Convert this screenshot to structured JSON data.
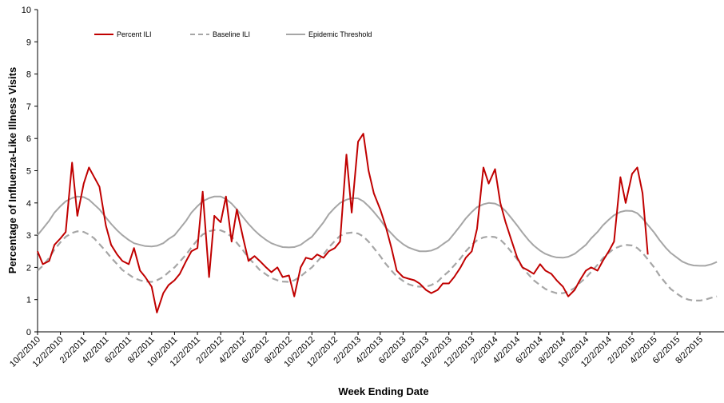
{
  "chart_data": {
    "type": "line",
    "y_label": "Percentage of Influenza-Like Illness Visits",
    "x_label": "Week Ending Date",
    "x": [
      "10/2/2010",
      "10/16/2010",
      "11/2/2010",
      "11/16/2010",
      "12/2/2010",
      "12/16/2010",
      "1/2/2011",
      "1/16/2011",
      "2/2/2011",
      "2/16/2011",
      "3/2/2011",
      "3/16/2011",
      "4/2/2011",
      "4/16/2011",
      "5/2/2011",
      "5/16/2011",
      "6/2/2011",
      "6/16/2011",
      "7/2/2011",
      "7/16/2011",
      "8/2/2011",
      "8/16/2011",
      "9/2/2011",
      "9/16/2011",
      "10/2/2011",
      "10/16/2011",
      "11/2/2011",
      "11/16/2011",
      "12/2/2011",
      "12/16/2011",
      "1/2/2012",
      "1/16/2012",
      "2/2/2012",
      "2/16/2012",
      "3/2/2012",
      "3/16/2012",
      "4/2/2012",
      "4/16/2012",
      "5/2/2012",
      "5/16/2012",
      "6/2/2012",
      "6/16/2012",
      "7/2/2012",
      "7/16/2012",
      "8/2/2012",
      "8/16/2012",
      "9/2/2012",
      "9/16/2012",
      "10/2/2012",
      "10/16/2012",
      "11/2/2012",
      "11/16/2012",
      "12/2/2012",
      "12/16/2012",
      "1/2/2013",
      "1/16/2013",
      "2/2/2013",
      "2/16/2013",
      "3/2/2013",
      "3/16/2013",
      "4/2/2013",
      "4/16/2013",
      "5/2/2013",
      "5/16/2013",
      "6/2/2013",
      "6/16/2013",
      "7/2/2013",
      "7/16/2013",
      "8/2/2013",
      "8/16/2013",
      "9/2/2013",
      "9/16/2013",
      "10/2/2013",
      "10/16/2013",
      "11/2/2013",
      "11/16/2013",
      "12/2/2013",
      "12/16/2013",
      "1/2/2014",
      "1/16/2014",
      "2/2/2014",
      "2/16/2014",
      "3/2/2014",
      "3/16/2014",
      "4/2/2014",
      "4/16/2014",
      "5/2/2014",
      "5/16/2014",
      "6/2/2014",
      "6/16/2014",
      "7/2/2014",
      "7/16/2014",
      "8/2/2014",
      "8/16/2014",
      "9/2/2014",
      "9/16/2014",
      "10/2/2014",
      "10/16/2014",
      "11/2/2014",
      "11/16/2014",
      "12/2/2014",
      "12/16/2014",
      "1/2/2015",
      "1/16/2015",
      "2/2/2015",
      "2/16/2015",
      "3/2/2015",
      "3/16/2015",
      "4/2/2015",
      "4/16/2015",
      "5/2/2015",
      "5/16/2015",
      "6/2/2015",
      "6/16/2015",
      "7/2/2015",
      "7/16/2015",
      "8/2/2015",
      "8/16/2015",
      "9/2/2015",
      "9/16/2015"
    ],
    "series": [
      {
        "name": "Percent ILI",
        "color": "#c00000",
        "dash": false,
        "values": [
          2.5,
          2.1,
          2.2,
          2.7,
          2.9,
          3.1,
          5.25,
          3.6,
          4.6,
          5.1,
          4.8,
          4.5,
          3.3,
          2.7,
          2.4,
          2.2,
          2.1,
          2.6,
          1.9,
          1.7,
          1.4,
          0.6,
          1.2,
          1.45,
          1.6,
          1.8,
          2.2,
          2.5,
          2.6,
          4.35,
          1.7,
          3.6,
          3.4,
          4.2,
          2.8,
          3.8,
          2.9,
          2.2,
          2.35,
          2.2,
          2.0,
          1.85,
          2.0,
          1.7,
          1.75,
          1.1,
          2.0,
          2.3,
          2.25,
          2.4,
          2.3,
          2.5,
          2.6,
          2.8,
          5.5,
          3.7,
          5.9,
          6.15,
          5.0,
          4.3,
          3.8,
          3.3,
          2.6,
          1.9,
          1.7,
          1.65,
          1.6,
          1.5,
          1.3,
          1.2,
          1.3,
          1.5,
          1.5,
          1.7,
          2.0,
          2.3,
          2.5,
          3.2,
          5.1,
          4.6,
          5.05,
          4.0,
          3.4,
          2.9,
          2.3,
          2.0,
          1.9,
          1.8,
          2.1,
          1.9,
          1.8,
          1.6,
          1.4,
          1.1,
          1.3,
          1.6,
          1.9,
          2.0,
          1.9,
          2.2,
          2.5,
          2.8,
          4.8,
          4.0,
          4.9,
          5.1,
          4.3,
          2.4,
          null,
          null,
          null,
          null,
          null,
          null,
          null,
          null,
          null,
          null,
          null,
          null
        ]
      },
      {
        "name": "Baseline ILI",
        "color": "#a6a6a6",
        "dash": true,
        "values": [
          1.9,
          2.05,
          2.3,
          2.55,
          2.78,
          2.95,
          3.07,
          3.12,
          3.1,
          3.02,
          2.9,
          2.72,
          2.5,
          2.3,
          2.1,
          1.92,
          1.78,
          1.67,
          1.6,
          1.56,
          1.55,
          1.6,
          1.7,
          1.85,
          2.0,
          2.18,
          2.4,
          2.62,
          2.85,
          3.02,
          3.12,
          3.16,
          3.15,
          3.08,
          2.95,
          2.76,
          2.52,
          2.3,
          2.1,
          1.92,
          1.78,
          1.67,
          1.6,
          1.56,
          1.55,
          1.6,
          1.72,
          1.86,
          2.0,
          2.18,
          2.4,
          2.62,
          2.82,
          2.98,
          3.06,
          3.08,
          3.05,
          2.96,
          2.8,
          2.6,
          2.35,
          2.12,
          1.9,
          1.72,
          1.58,
          1.48,
          1.42,
          1.4,
          1.4,
          1.45,
          1.56,
          1.72,
          1.88,
          2.06,
          2.28,
          2.5,
          2.7,
          2.84,
          2.93,
          2.96,
          2.94,
          2.86,
          2.7,
          2.5,
          2.25,
          2.0,
          1.78,
          1.6,
          1.45,
          1.33,
          1.25,
          1.2,
          1.2,
          1.25,
          1.36,
          1.52,
          1.68,
          1.86,
          2.08,
          2.28,
          2.45,
          2.58,
          2.66,
          2.7,
          2.68,
          2.6,
          2.45,
          2.25,
          2.0,
          1.75,
          1.52,
          1.33,
          1.18,
          1.07,
          1.0,
          0.97,
          0.97,
          1.0,
          1.06,
          1.1
        ]
      },
      {
        "name": "Epidemic Threshold",
        "color": "#a6a6a6",
        "dash": false,
        "values": [
          3.0,
          3.2,
          3.45,
          3.7,
          3.9,
          4.05,
          4.15,
          4.2,
          4.18,
          4.1,
          3.95,
          3.8,
          3.55,
          3.35,
          3.15,
          3.0,
          2.85,
          2.75,
          2.7,
          2.66,
          2.65,
          2.67,
          2.75,
          2.88,
          3.0,
          3.2,
          3.45,
          3.7,
          3.9,
          4.05,
          4.15,
          4.2,
          4.2,
          4.12,
          3.98,
          3.8,
          3.55,
          3.35,
          3.15,
          3.0,
          2.85,
          2.75,
          2.68,
          2.63,
          2.62,
          2.63,
          2.7,
          2.82,
          2.95,
          3.15,
          3.4,
          3.65,
          3.85,
          4.0,
          4.1,
          4.15,
          4.14,
          4.05,
          3.9,
          3.72,
          3.48,
          3.25,
          3.05,
          2.88,
          2.72,
          2.62,
          2.55,
          2.5,
          2.5,
          2.52,
          2.6,
          2.72,
          2.85,
          3.05,
          3.3,
          3.52,
          3.72,
          3.87,
          3.96,
          4.0,
          3.98,
          3.9,
          3.75,
          3.55,
          3.3,
          3.08,
          2.85,
          2.68,
          2.52,
          2.42,
          2.35,
          2.31,
          2.3,
          2.33,
          2.42,
          2.55,
          2.7,
          2.9,
          3.1,
          3.3,
          3.48,
          3.62,
          3.72,
          3.76,
          3.75,
          3.68,
          3.52,
          3.32,
          3.08,
          2.85,
          2.62,
          2.45,
          2.3,
          2.18,
          2.1,
          2.06,
          2.05,
          2.05,
          2.1,
          2.17
        ]
      }
    ],
    "xlim": [
      "10/2/2010",
      "10/5/2015"
    ],
    "xticks": [
      "10/2/2010",
      "12/2/2010",
      "2/2/2011",
      "4/2/2011",
      "6/2/2011",
      "8/2/2011",
      "10/2/2011",
      "12/2/2011",
      "2/2/2012",
      "4/2/2012",
      "6/2/2012",
      "8/2/2012",
      "10/2/2012",
      "12/2/2012",
      "2/2/2013",
      "4/2/2013",
      "6/2/2013",
      "8/2/2013",
      "10/2/2013",
      "12/2/2013",
      "2/2/2014",
      "4/2/2014",
      "6/2/2014",
      "8/2/2014",
      "10/2/2014",
      "12/2/2014",
      "2/2/2015",
      "4/2/2015",
      "6/2/2015",
      "8/2/2015"
    ],
    "ylim": [
      0,
      10
    ],
    "yticks": [
      0,
      1,
      2,
      3,
      4,
      5,
      6,
      7,
      8,
      9,
      10
    ],
    "grid": false,
    "legend": "top-left"
  }
}
